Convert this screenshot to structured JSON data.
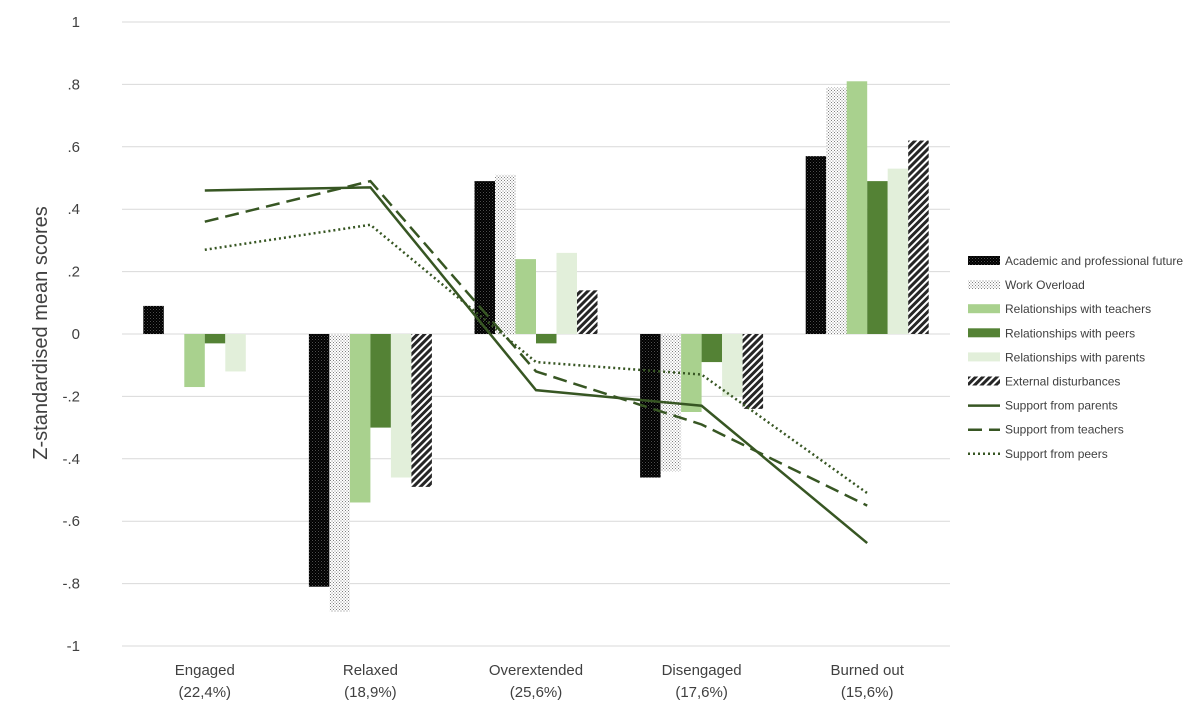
{
  "chart_data": {
    "type": "bar",
    "ylabel": "Z-standardised mean scores",
    "xlabel": "",
    "ylim": [
      -1,
      1
    ],
    "y_ticks": [
      "1",
      ".8",
      ".6",
      ".4",
      ".2",
      "0",
      "-.2",
      "-.4",
      "-.6",
      "-.8",
      "-1"
    ],
    "y_tick_values": [
      1,
      0.8,
      0.6,
      0.4,
      0.2,
      0,
      -0.2,
      -0.4,
      -0.6,
      -0.8,
      -1
    ],
    "grid": true,
    "legend_position": "right",
    "categories": [
      [
        "Engaged",
        "(22,4%)"
      ],
      [
        "Relaxed",
        "(18,9%)"
      ],
      [
        "Overextended",
        "(25,6%)"
      ],
      [
        "Disengaged",
        "(17,6%)"
      ],
      [
        "Burned out",
        "(15,6%)"
      ]
    ],
    "bar_series": [
      {
        "name": "Academic and professional future",
        "color": "#000000",
        "pattern": "dense-dots-dark",
        "values": [
          0.09,
          -0.81,
          0.49,
          -0.46,
          0.57
        ]
      },
      {
        "name": "Work Overload",
        "color": "#999999",
        "pattern": "dotted-light",
        "values": [
          0.0,
          -0.89,
          0.51,
          -0.44,
          0.79
        ]
      },
      {
        "name": "Relationships with teachers",
        "color": "#a9d18e",
        "pattern": "solid",
        "values": [
          -0.17,
          -0.54,
          0.24,
          -0.25,
          0.81
        ]
      },
      {
        "name": "Relationships with peers",
        "color": "#548235",
        "pattern": "solid",
        "values": [
          -0.03,
          -0.3,
          -0.03,
          -0.09,
          0.49
        ]
      },
      {
        "name": "Relationships with parents",
        "color": "#e2efda",
        "pattern": "solid",
        "values": [
          -0.12,
          -0.46,
          0.26,
          -0.2,
          0.53
        ]
      },
      {
        "name": "External disturbances",
        "color": "#404040",
        "pattern": "diagonal",
        "values": [
          0.0,
          -0.49,
          0.14,
          -0.24,
          0.62
        ]
      }
    ],
    "line_series": [
      {
        "name": "Support from parents",
        "color": "#375623",
        "dash": "solid",
        "values": [
          0.46,
          0.47,
          -0.18,
          -0.23,
          -0.67
        ]
      },
      {
        "name": "Support from teachers",
        "color": "#375623",
        "dash": "dashed",
        "values": [
          0.36,
          0.49,
          -0.12,
          -0.29,
          -0.55
        ]
      },
      {
        "name": "Support from peers",
        "color": "#375623",
        "dash": "dotted",
        "values": [
          0.27,
          0.35,
          -0.09,
          -0.13,
          -0.51
        ]
      }
    ]
  }
}
